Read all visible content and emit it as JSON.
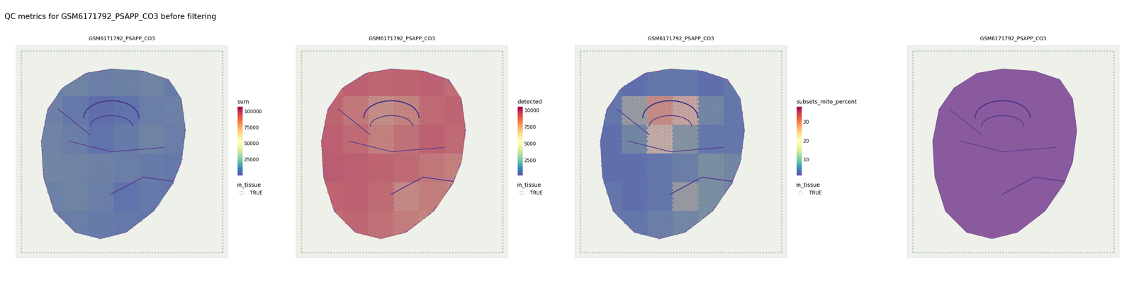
{
  "title": "QC metrics for GSM6171792_PSAPP_CO3 before filtering",
  "chart_data": [
    {
      "type": "spatial",
      "title": "GSM6171792_PSAPP_CO3",
      "color_label": "sum",
      "color_range": [
        0,
        107000
      ],
      "color_ticks": [
        25000,
        50000,
        75000,
        100000
      ],
      "legend_title": "in_tissue",
      "legend_entries": [
        "TRUE"
      ],
      "cells": [
        [
          15000,
          18000,
          16000,
          17000,
          18000,
          15000
        ],
        [
          17000,
          14000,
          10000,
          12000,
          16000,
          17000
        ],
        [
          18000,
          16000,
          12000,
          15000,
          18000,
          16000
        ],
        [
          19000,
          18000,
          17000,
          16000,
          15000,
          14000
        ],
        [
          17000,
          18000,
          16000,
          12000,
          14000,
          13000
        ],
        [
          15000,
          16000,
          15000,
          14000,
          13000,
          12000
        ]
      ]
    },
    {
      "type": "spatial",
      "title": "GSM6171792_PSAPP_CO3",
      "color_label": "detected",
      "color_range": [
        200,
        10500
      ],
      "color_ticks": [
        2500,
        5000,
        7500,
        10000
      ],
      "legend_title": "in_tissue",
      "legend_entries": [
        "TRUE"
      ],
      "cells": [
        [
          8200,
          8500,
          8300,
          8400,
          8500,
          8100
        ],
        [
          8400,
          7800,
          7000,
          7400,
          8200,
          8400
        ],
        [
          8600,
          8200,
          7500,
          8000,
          8500,
          8200
        ],
        [
          8700,
          8600,
          8400,
          8200,
          7800,
          7500
        ],
        [
          8400,
          8500,
          8200,
          7200,
          7600,
          7400
        ],
        [
          8100,
          8300,
          8000,
          7600,
          7300,
          7000
        ]
      ]
    },
    {
      "type": "spatial",
      "title": "GSM6171792_PSAPP_CO3",
      "color_label": "subsets_mito_percent",
      "color_range": [
        1.5,
        38
      ],
      "color_ticks": [
        10,
        20,
        30
      ],
      "legend_title": "in_tissue",
      "legend_entries": [
        "TRUE"
      ],
      "cells": [
        [
          6,
          5,
          6,
          6,
          5,
          6
        ],
        [
          6,
          12,
          26,
          22,
          8,
          6
        ],
        [
          5,
          8,
          18,
          10,
          6,
          6
        ],
        [
          5,
          5,
          6,
          7,
          9,
          8
        ],
        [
          6,
          5,
          6,
          12,
          9,
          8
        ],
        [
          6,
          6,
          7,
          8,
          9,
          10
        ]
      ]
    },
    {
      "type": "image",
      "title": "GSM6171792_PSAPP_CO3"
    }
  ]
}
